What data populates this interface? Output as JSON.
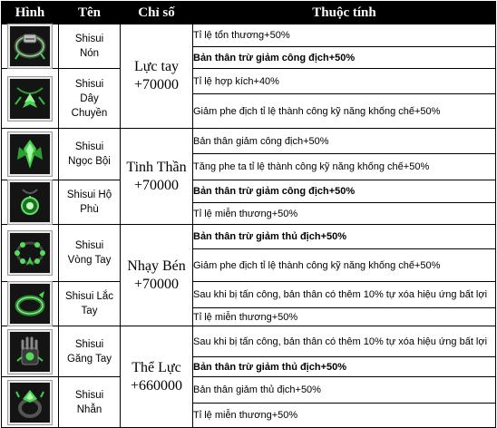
{
  "headers": [
    "Hình",
    "Tên",
    "Chỉ số",
    "Thuộc tính"
  ],
  "groups": [
    {
      "stat": [
        "Lực tay",
        "+70000"
      ],
      "items": [
        {
          "icon": "green-headband-icon",
          "name": [
            "Shisui",
            "Nón"
          ],
          "attrs": [
            {
              "text": "Tỉ lệ tổn thương+50%",
              "bold": false
            },
            {
              "text": "Bản thân trừ giảm công địch+50%",
              "bold": true
            }
          ]
        },
        {
          "icon": "green-leaf-necklace-icon",
          "name": [
            "Shisui",
            "Dây",
            "Chuyền"
          ],
          "attrs": [
            {
              "text": "Tỉ lệ hợp kích+40%",
              "bold": false
            },
            {
              "text": "Giảm phe địch tỉ lệ thành công kỹ năng khống chế+50%",
              "bold": false
            }
          ]
        }
      ]
    },
    {
      "stat": [
        "Tinh Thần",
        "+70000"
      ],
      "items": [
        {
          "icon": "green-jade-pendant-icon",
          "name": [
            "Shisui",
            "Ngọc Bội"
          ],
          "attrs": [
            {
              "text": "Bản thân giảm công địch+50%",
              "bold": false
            },
            {
              "text": "Tăng phe ta tỉ lệ thành công kỹ năng khống chế+50%",
              "bold": false
            }
          ]
        },
        {
          "icon": "green-amulet-icon",
          "name": [
            "Shisui Hộ",
            "Phù"
          ],
          "attrs": [
            {
              "text": "Bản thân trừ giảm công địch+50%",
              "bold": true
            },
            {
              "text": "Tỉ lệ miễn thương+50%",
              "bold": false
            }
          ]
        }
      ]
    },
    {
      "stat": [
        "Nhạy Bén",
        "+70000"
      ],
      "items": [
        {
          "icon": "green-bead-bracelet-icon",
          "name": [
            "Shisui",
            "Vòng Tay"
          ],
          "attrs": [
            {
              "text": "Bản thân trừ giảm thủ địch+50%",
              "bold": true
            },
            {
              "text": "Giảm phe địch tỉ lệ thành công kỹ năng khống chế+50%",
              "bold": false
            }
          ]
        },
        {
          "icon": "green-bangle-icon",
          "name": [
            "Shisui Lắc",
            "Tay"
          ],
          "attrs": [
            {
              "text": "Sau khi bị tấn công, bản thân có thêm 10% tự xóa hiệu ứng bất lợi",
              "bold": false
            },
            {
              "text": "Tỉ lệ miễn thương+50%",
              "bold": false
            }
          ]
        }
      ]
    },
    {
      "stat": [
        "Thể Lực",
        "+660000"
      ],
      "items": [
        {
          "icon": "green-gauntlet-icon",
          "name": [
            "Shisui",
            "Găng Tay"
          ],
          "attrs": [
            {
              "text": "Sau khi bị tấn công, bản thân có thêm 10% tự xóa hiệu ứng bất lợi",
              "bold": false
            },
            {
              "text": "Bản thân trừ giảm thủ địch+50%",
              "bold": true
            }
          ]
        },
        {
          "icon": "green-ring-icon",
          "name": [
            "Shisui",
            "Nhẫn"
          ],
          "attrs": [
            {
              "text": "Bản thân giảm thủ địch+50%",
              "bold": false
            },
            {
              "text": "Tỉ lệ miễn thương+50%",
              "bold": false
            }
          ]
        }
      ]
    }
  ]
}
